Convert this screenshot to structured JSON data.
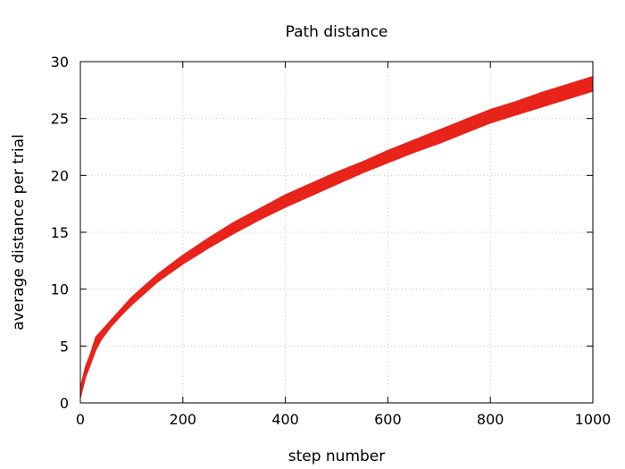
{
  "chart_data": {
    "type": "line",
    "title": "Path distance",
    "xlabel": "step number",
    "ylabel": "average distance per trial",
    "xlim": [
      0,
      1000
    ],
    "ylim": [
      0,
      30
    ],
    "x_ticks": [
      "0",
      "200",
      "400",
      "600",
      "800",
      "1000"
    ],
    "y_ticks": [
      "0",
      "5",
      "10",
      "15",
      "20",
      "25",
      "30"
    ],
    "grid": true,
    "legend": "none",
    "series": [
      {
        "color": "#e8231a",
        "style": "band",
        "x": [
          0,
          10,
          20,
          30,
          40,
          60,
          80,
          100,
          150,
          200,
          250,
          300,
          350,
          400,
          450,
          500,
          550,
          600,
          650,
          700,
          750,
          800,
          850,
          900,
          950,
          1000
        ],
        "y_low": [
          0.4,
          2.2,
          3.4,
          4.6,
          5.5,
          6.7,
          7.7,
          8.6,
          10.6,
          12.2,
          13.6,
          14.9,
          16.1,
          17.2,
          18.2,
          19.2,
          20.2,
          21.1,
          22.0,
          22.8,
          23.7,
          24.6,
          25.3,
          26.0,
          26.7,
          27.4
        ],
        "y_high": [
          1.4,
          3.2,
          4.4,
          5.8,
          6.3,
          7.3,
          8.3,
          9.3,
          11.3,
          13.0,
          14.5,
          15.9,
          17.1,
          18.3,
          19.3,
          20.3,
          21.2,
          22.2,
          23.1,
          24.0,
          24.9,
          25.8,
          26.5,
          27.3,
          28.0,
          28.7
        ]
      }
    ]
  }
}
